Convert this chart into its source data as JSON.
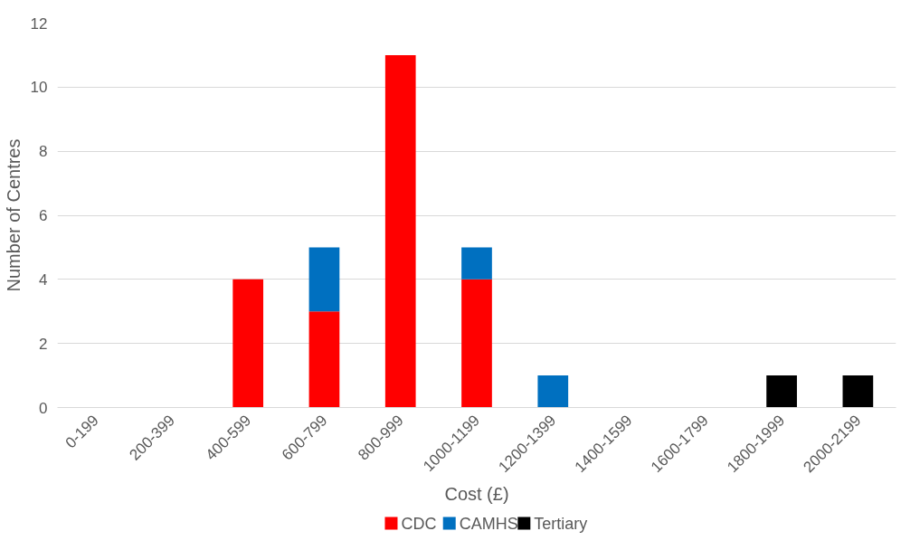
{
  "chart_data": {
    "type": "bar",
    "stacked": true,
    "xlabel": "Cost (£)",
    "ylabel": "Number of Centres",
    "categories": [
      "0-199",
      "200-399",
      "400-599",
      "600-799",
      "800-999",
      "1000-1199",
      "1200-1399",
      "1400-1599",
      "1600-1799",
      "1800-1999",
      "2000-2199"
    ],
    "series": [
      {
        "name": "CDC",
        "color": "#ff0000",
        "values": [
          0,
          0,
          4,
          3,
          11,
          4,
          0,
          0,
          0,
          0,
          0
        ]
      },
      {
        "name": "CAMHS",
        "color": "#0070c0",
        "values": [
          0,
          0,
          0,
          2,
          0,
          1,
          1,
          0,
          0,
          0,
          0
        ]
      },
      {
        "name": "Tertiary",
        "color": "#000000",
        "values": [
          0,
          0,
          0,
          0,
          0,
          0,
          0,
          0,
          0,
          1,
          1
        ]
      }
    ],
    "ylim": [
      0,
      12
    ],
    "yticks": [
      0,
      2,
      4,
      6,
      8,
      10,
      12
    ],
    "grid": "y",
    "legend": "bottom"
  }
}
